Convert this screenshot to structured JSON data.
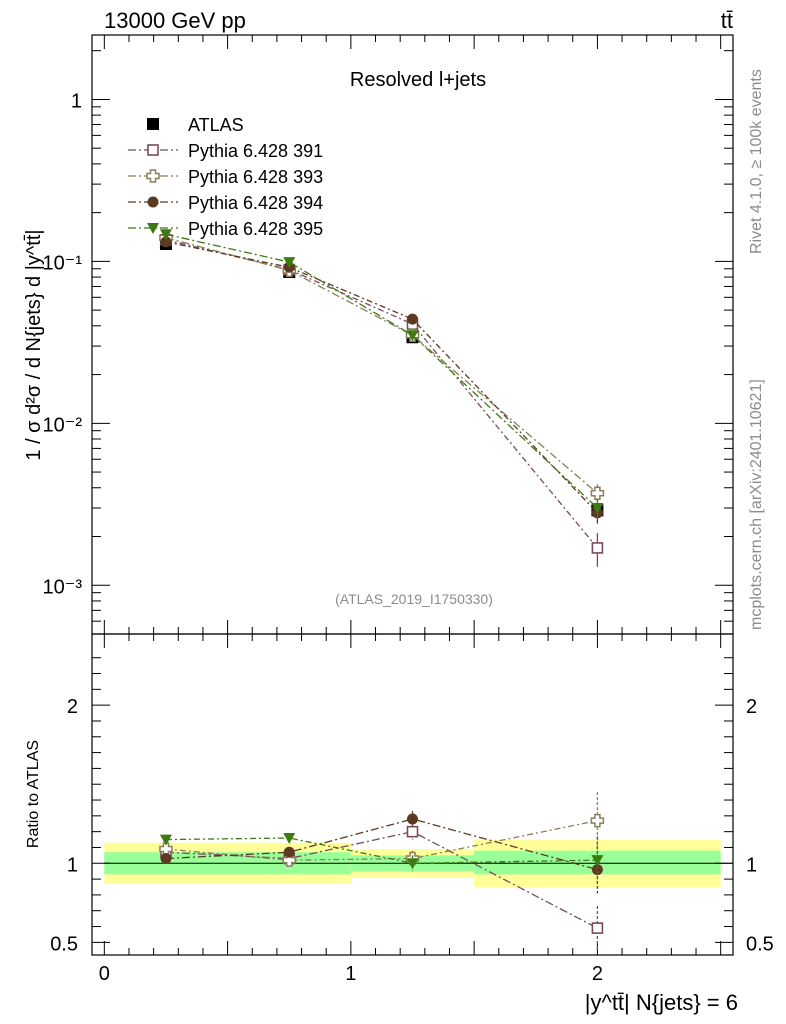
{
  "header": {
    "energy_label": "13000 GeV pp",
    "process_label": "tt̄"
  },
  "side": {
    "rivet_label": "Rivet 4.1.0, ≥ 100k events",
    "mcplots_label": "mcplots.cern.ch [arXiv:2401.10621]"
  },
  "chart_data": [
    {
      "type": "scatter",
      "panel": "main",
      "title": "Resolved l+jets",
      "analysis_label": "(ATLAS_2019_I1750330)",
      "ylabel": "1 / σ d²σ / d N{jets} d |y^tt̄|",
      "yscale": "log",
      "ylim": [
        0.0005,
        2.5
      ],
      "xlim": [
        -0.05,
        2.55
      ],
      "y_ticks": [
        {
          "value": 1,
          "label": "1"
        },
        {
          "value": 0.1,
          "label": "10⁻¹"
        },
        {
          "value": 0.01,
          "label": "10⁻²"
        },
        {
          "value": 0.001,
          "label": "10⁻³"
        }
      ],
      "x": [
        0.25,
        0.75,
        1.25,
        2.0
      ],
      "series": [
        {
          "name": "ATLAS",
          "color": "#000000",
          "marker": "square-filled",
          "values": [
            0.128,
            0.086,
            0.034,
            0.0029
          ],
          "errors": [
            0.004,
            0.003,
            0.0015,
            0.0003
          ]
        },
        {
          "name": "Pythia 6.428 391",
          "color": "#7a4b5e",
          "marker": "square-open",
          "values": [
            0.136,
            0.089,
            0.041,
            0.0017
          ],
          "errors": [
            0.003,
            0.002,
            0.002,
            0.0004
          ]
        },
        {
          "name": "Pythia 6.428 393",
          "color": "#8a7d5a",
          "marker": "cross-open",
          "values": [
            0.14,
            0.088,
            0.035,
            0.0037
          ],
          "errors": [
            0.003,
            0.002,
            0.002,
            0.0005
          ]
        },
        {
          "name": "Pythia 6.428 394",
          "color": "#5c3a22",
          "marker": "circle-filled",
          "values": [
            0.132,
            0.092,
            0.044,
            0.0028
          ],
          "errors": [
            0.003,
            0.002,
            0.002,
            0.0004
          ]
        },
        {
          "name": "Pythia 6.428 395",
          "color": "#3d7a12",
          "marker": "triangle-down-filled",
          "values": [
            0.147,
            0.099,
            0.035,
            0.003
          ],
          "errors": [
            0.003,
            0.002,
            0.002,
            0.0004
          ]
        }
      ]
    },
    {
      "type": "scatter",
      "panel": "ratio",
      "ylabel": "Ratio to ATLAS",
      "xlabel": "|y^tt̄| N{jets} = 6",
      "ylim": [
        0.42,
        2.45
      ],
      "xlim": [
        -0.05,
        2.55
      ],
      "reference_line": 1,
      "y_ticks": [
        {
          "value": 0.5,
          "label": "0.5"
        },
        {
          "value": 1,
          "label": "1"
        },
        {
          "value": 2,
          "label": "2"
        }
      ],
      "x_ticks": [
        {
          "value": 0,
          "label": "0"
        },
        {
          "value": 1,
          "label": "1"
        },
        {
          "value": 2,
          "label": "2"
        }
      ],
      "bands": [
        {
          "x_range": [
            0.0,
            1.0
          ],
          "inner": [
            0.93,
            1.07
          ],
          "outer": [
            0.87,
            1.13
          ],
          "draw_to": 1.0
        },
        {
          "x_range": [
            1.0,
            1.5
          ],
          "inner": [
            0.95,
            1.05
          ],
          "outer": [
            0.91,
            1.09
          ],
          "draw_to": 1.5
        },
        {
          "x_range": [
            1.5,
            2.5
          ],
          "inner": [
            0.93,
            1.08
          ],
          "outer": [
            0.85,
            1.15
          ],
          "draw_to": 2.5
        }
      ],
      "band_colors": {
        "inner": "#99ff99",
        "outer": "#ffff99"
      },
      "x": [
        0.25,
        0.75,
        1.25,
        2.0
      ],
      "series": [
        {
          "name": "Pythia 6.428 391",
          "color": "#7a4b5e",
          "marker": "square-open",
          "values": [
            1.07,
            1.03,
            1.2,
            0.59
          ],
          "errors": [
            0.03,
            0.03,
            0.05,
            0.14
          ]
        },
        {
          "name": "Pythia 6.428 393",
          "color": "#8a7d5a",
          "marker": "cross-open",
          "values": [
            1.09,
            1.02,
            1.03,
            1.27
          ],
          "errors": [
            0.03,
            0.03,
            0.05,
            0.18
          ]
        },
        {
          "name": "Pythia 6.428 394",
          "color": "#5c3a22",
          "marker": "circle-filled",
          "values": [
            1.03,
            1.07,
            1.28,
            0.96
          ],
          "errors": [
            0.03,
            0.03,
            0.05,
            0.15
          ]
        },
        {
          "name": "Pythia 6.428 395",
          "color": "#3d7a12",
          "marker": "triangle-down-filled",
          "values": [
            1.15,
            1.16,
            1.0,
            1.02
          ],
          "errors": [
            0.03,
            0.03,
            0.05,
            0.15
          ]
        }
      ]
    }
  ]
}
